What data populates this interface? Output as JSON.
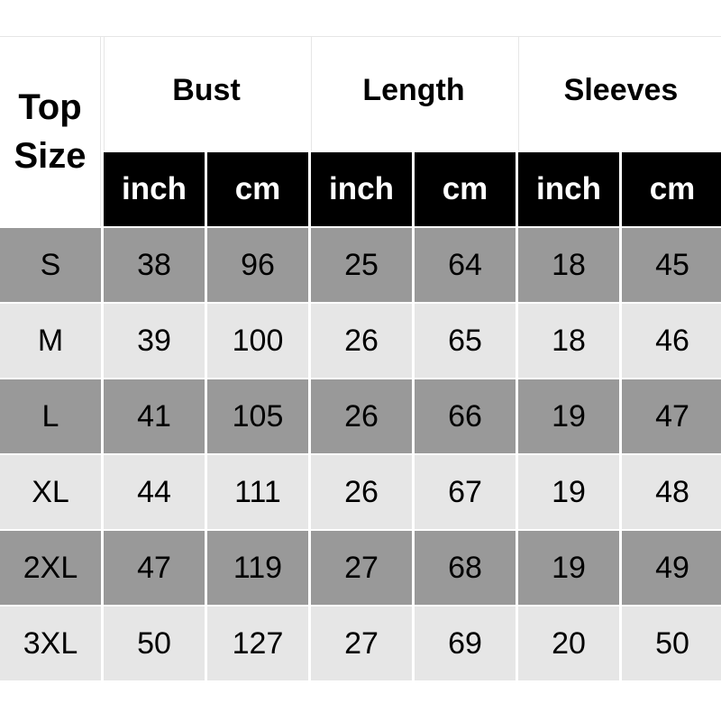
{
  "header": {
    "corner": [
      "Top",
      "Size"
    ],
    "groups": [
      "Bust",
      "Length",
      "Sleeves"
    ],
    "units": [
      "inch",
      "cm",
      "inch",
      "cm",
      "inch",
      "cm"
    ]
  },
  "rows": [
    [
      "S",
      "38",
      "96",
      "25",
      "64",
      "18",
      "45"
    ],
    [
      "M",
      "39",
      "100",
      "26",
      "65",
      "18",
      "46"
    ],
    [
      "L",
      "41",
      "105",
      "26",
      "66",
      "19",
      "47"
    ],
    [
      "XL",
      "44",
      "111",
      "26",
      "67",
      "19",
      "48"
    ],
    [
      "2XL",
      "47",
      "119",
      "27",
      "68",
      "19",
      "49"
    ],
    [
      "3XL",
      "50",
      "127",
      "27",
      "69",
      "20",
      "50"
    ]
  ],
  "colors": {
    "dark_row": "#999999",
    "light_row": "#e6e6e6",
    "unit_header": "#000000"
  }
}
